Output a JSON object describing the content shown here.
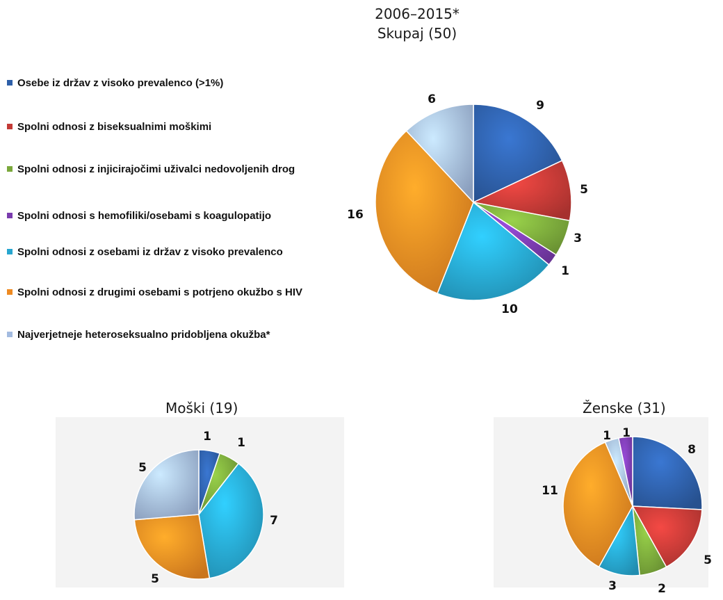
{
  "titles": {
    "main_line1": "2006–2015*",
    "main_line2": "Skupaj (50)"
  },
  "legend": [
    {
      "label": "Osebe iz držav z visoko prevalenco (>1%)",
      "color": "#2e5fa8"
    },
    {
      "label": "Spolni odnosi z biseksualnimi moškimi",
      "color": "#c33a36"
    },
    {
      "label": "Spolni odnosi z injicirajočimi uživalci nedovoljenih drog",
      "color": "#7aa83b"
    },
    {
      "label": "Spolni odnosi s hemofiliki/osebami s koagulopatijo",
      "color": "#7a3cae"
    },
    {
      "label": "Spolni odnosi z osebami iz držav z visoko prevalenco",
      "color": "#27a6cf"
    },
    {
      "label": "Spolni odnosi z drugimi osebami s potrjeno okužbo s HIV",
      "color": "#ee8a22"
    },
    {
      "label": "Najverjetneje heteroseksualno pridobljena okužba*",
      "color": "#a3bbe0"
    }
  ],
  "chart_data": [
    {
      "type": "pie",
      "title": "Skupaj (50)",
      "categories": [
        "Osebe iz držav z visoko prevalenco (>1%)",
        "Spolni odnosi z biseksualnimi moškimi",
        "Spolni odnosi z injicirajočimi uživalci nedovoljenih drog",
        "Spolni odnosi s hemofiliki/osebami s koagulopatijo",
        "Spolni odnosi z osebami iz držav z visoko prevalenco",
        "Spolni odnosi z drugimi osebami s potrjeno okužbo s HIV",
        "Najverjetneje heteroseksualno pridobljena okužba*"
      ],
      "values": [
        9,
        5,
        3,
        1,
        10,
        16,
        6
      ],
      "labels": [
        "9",
        "5",
        "3",
        "1",
        "10",
        "16",
        "6"
      ]
    },
    {
      "type": "pie",
      "title": "Moški (19)",
      "categories": [
        "Osebe iz držav z visoko prevalenco (>1%)",
        "Spolni odnosi z injicirajočimi uživalci nedovoljenih drog",
        "Spolni odnosi z osebami iz držav z visoko prevalenco",
        "Spolni odnosi z drugimi osebami s potrjeno okužbo s HIV",
        "Najverjetneje heteroseksualno pridobljena okužba*"
      ],
      "values": [
        1,
        1,
        7,
        5,
        5
      ],
      "labels": [
        "1",
        "1",
        "7",
        "5",
        "5"
      ]
    },
    {
      "type": "pie",
      "title": "Ženske (31)",
      "categories": [
        "Osebe iz držav z visoko prevalenco (>1%)",
        "Spolni odnosi z biseksualnimi moškimi",
        "Spolni odnosi z injicirajočimi uživalci nedovoljenih drog",
        "Spolni odnosi z osebami iz držav z visoko prevalenco",
        "Spolni odnosi z drugimi osebami s potrjeno okužbo s HIV",
        "Najverjetneje heteroseksualno pridobljena okužba*",
        "Spolni odnosi s hemofiliki/osebami s koagulopatijo"
      ],
      "values": [
        8,
        5,
        2,
        3,
        11,
        1,
        1
      ],
      "labels": [
        "8",
        "5",
        "2",
        "3",
        "11",
        "1",
        "1"
      ]
    }
  ],
  "slice_colors": {
    "skupaj": [
      "#2e5fa8",
      "#c33a36",
      "#7aa83b",
      "#7a3cae",
      "#27a6cf",
      "#ee8a22",
      "#a3bbe0"
    ],
    "moski": [
      "#2e5fa8",
      "#7aa83b",
      "#27a6cf",
      "#ee8a22",
      "#a3bbe0"
    ],
    "zenske": [
      "#2e5fa8",
      "#c33a36",
      "#7aa83b",
      "#27a6cf",
      "#ee8a22",
      "#a3bbe0",
      "#7a3cae"
    ]
  }
}
